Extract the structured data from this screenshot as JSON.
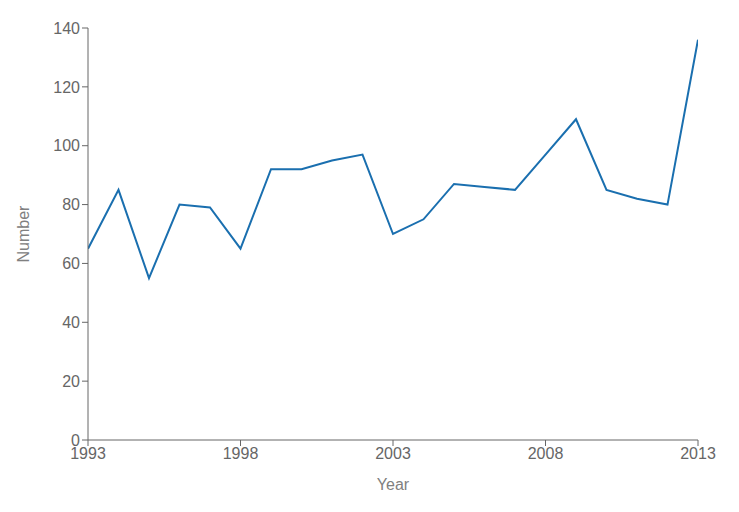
{
  "chart_data": {
    "type": "line",
    "xlabel": "Year",
    "ylabel": "Number",
    "x": [
      1993,
      1994,
      1995,
      1996,
      1997,
      1998,
      1999,
      2000,
      2001,
      2002,
      2003,
      2004,
      2005,
      2006,
      2007,
      2008,
      2009,
      2010,
      2011,
      2012,
      2013
    ],
    "values": [
      65,
      85,
      55,
      80,
      79,
      65,
      92,
      92,
      95,
      97,
      70,
      75,
      87,
      86,
      85,
      97,
      109,
      85,
      82,
      80,
      136
    ],
    "color": "#1a6faf",
    "xlim": [
      1993,
      2013
    ],
    "ylim": [
      0,
      140
    ],
    "xticks": [
      1993,
      1998,
      2003,
      2008,
      2013
    ],
    "yticks": [
      0,
      20,
      40,
      60,
      80,
      100,
      120,
      140
    ],
    "grid": false
  }
}
